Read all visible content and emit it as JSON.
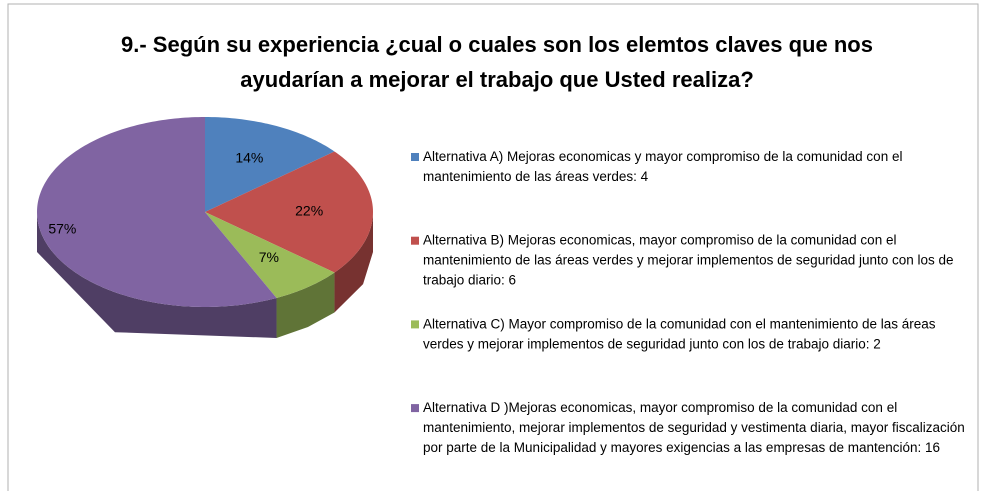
{
  "chart_data": {
    "type": "pie",
    "title": [
      "9.- Según su experiencia ¿cual o cuales son los elemtos claves que nos",
      "ayudarían a mejorar el trabajo que Usted realiza?"
    ],
    "categories": [
      "Alternativa A) Mejoras economicas y mayor compromiso de la comunidad con el mantenimiento de las áreas verdes: 4",
      "Alternativa B) Mejoras economicas, mayor compromiso de la comunidad con el mantenimiento de las áreas verdes y mejorar implementos de seguridad junto con los de trabajo diario: 6",
      "Alternativa C) Mayor compromiso de la comunidad con el mantenimiento de las áreas verdes y mejorar implementos de seguridad junto con los de trabajo diario: 2",
      "Alternativa D )Mejoras economicas, mayor compromiso de la comunidad con el mantenimiento, mejorar implementos de seguridad  y vestimenta diaria, mayor fiscalización por parte de la Municipalidad y mayores exigencias a las empresas de mantención: 16"
    ],
    "values": [
      14,
      22,
      7,
      57
    ],
    "value_labels": [
      "14%",
      "22%",
      "7%",
      "57%"
    ],
    "colors": [
      "#4f81bd",
      "#c0504d",
      "#9bbb59",
      "#8064a2"
    ],
    "legend": "right"
  }
}
